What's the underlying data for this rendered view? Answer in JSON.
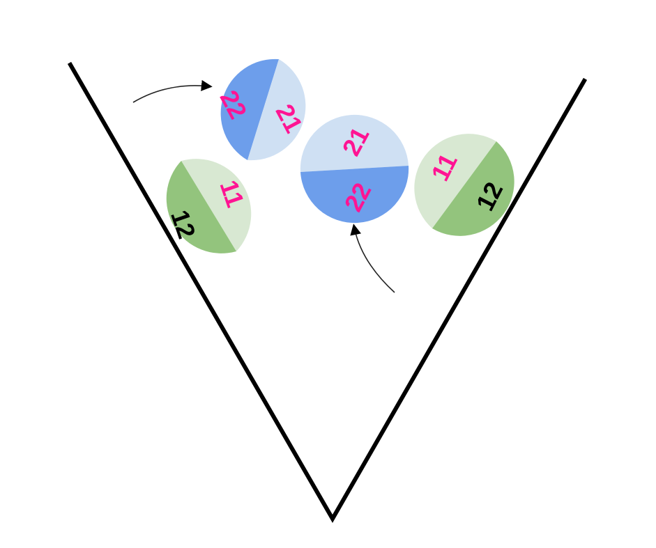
{
  "colors": {
    "background": "#ffffff",
    "funnel_stroke": "#000000",
    "arrow_stroke": "#222222",
    "label_magenta": "#ff1493",
    "label_black": "#000000",
    "green_light": "#d8e8d2",
    "green_dark": "#93c47d",
    "blue_light": "#cfe0f3",
    "blue_dark": "#6d9eeb"
  },
  "discs": [
    {
      "id": "green-left",
      "light": {
        "label": "11",
        "label_color": "label_magenta",
        "fill": "green_light"
      },
      "dark": {
        "label": "12",
        "label_color": "label_black",
        "fill": "green_dark"
      }
    },
    {
      "id": "blue-top",
      "light": {
        "label": "21",
        "label_color": "label_magenta",
        "fill": "blue_light"
      },
      "dark": {
        "label": "22",
        "label_color": "label_magenta",
        "fill": "blue_dark"
      }
    },
    {
      "id": "blue-middle",
      "light": {
        "label": "21",
        "label_color": "label_magenta",
        "fill": "blue_light"
      },
      "dark": {
        "label": "22",
        "label_color": "label_magenta",
        "fill": "blue_dark"
      }
    },
    {
      "id": "green-right",
      "light": {
        "label": "11",
        "label_color": "label_magenta",
        "fill": "green_light"
      },
      "dark": {
        "label": "12",
        "label_color": "label_black",
        "fill": "green_dark"
      }
    }
  ],
  "arrows": [
    {
      "id": "arrow-to-blue-top"
    },
    {
      "id": "arrow-to-blue-middle"
    }
  ]
}
